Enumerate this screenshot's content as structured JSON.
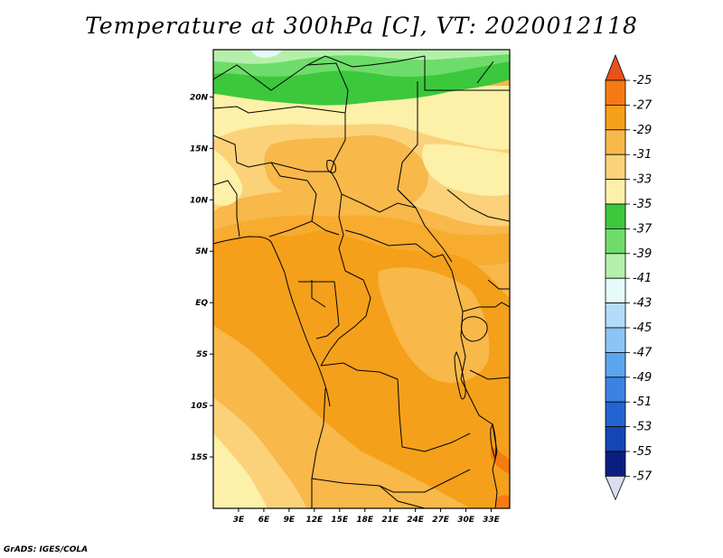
{
  "title": "Temperature at 300hPa [C], VT: 2020012118",
  "credit": "GrADS: IGES/COLA",
  "map": {
    "x_ticks": [
      {
        "lon": 3,
        "label": "3E"
      },
      {
        "lon": 6,
        "label": "6E"
      },
      {
        "lon": 9,
        "label": "9E"
      },
      {
        "lon": 12,
        "label": "12E"
      },
      {
        "lon": 15,
        "label": "15E"
      },
      {
        "lon": 18,
        "label": "18E"
      },
      {
        "lon": 21,
        "label": "21E"
      },
      {
        "lon": 24,
        "label": "24E"
      },
      {
        "lon": 27,
        "label": "27E"
      },
      {
        "lon": 30,
        "label": "30E"
      },
      {
        "lon": 33,
        "label": "33E"
      }
    ],
    "y_ticks": [
      {
        "lat": 20,
        "label": "20N"
      },
      {
        "lat": 15,
        "label": "15N"
      },
      {
        "lat": 10,
        "label": "10N"
      },
      {
        "lat": 5,
        "label": "5N"
      },
      {
        "lat": 0,
        "label": "EQ"
      },
      {
        "lat": -5,
        "label": "5S"
      },
      {
        "lat": -10,
        "label": "10S"
      },
      {
        "lat": -15,
        "label": "15S"
      }
    ]
  },
  "colorbar": {
    "levels": [
      {
        "label": "-25",
        "color": "#e8501e"
      },
      {
        "label": "-27",
        "color": "#f57a14"
      },
      {
        "label": "-29",
        "color": "#f5a01a"
      },
      {
        "label": "-31",
        "color": "#f8b84a"
      },
      {
        "label": "-33",
        "color": "#fbd27a"
      },
      {
        "label": "-35",
        "color": "#fdf0a8"
      },
      {
        "label": "-37",
        "color": "#3cc83c"
      },
      {
        "label": "-39",
        "color": "#6edc6a"
      },
      {
        "label": "-41",
        "color": "#b4f0aa"
      },
      {
        "label": "-43",
        "color": "#e6fafa"
      },
      {
        "label": "-45",
        "color": "#b4dcf8"
      },
      {
        "label": "-47",
        "color": "#8cc4f4"
      },
      {
        "label": "-49",
        "color": "#5aa6ee"
      },
      {
        "label": "-51",
        "color": "#3c82e4"
      },
      {
        "label": "-53",
        "color": "#2464d2"
      },
      {
        "label": "-55",
        "color": "#1446b4"
      },
      {
        "label": "-57",
        "color": "#0a1e82"
      }
    ],
    "top_cap_color": "#e8501e",
    "bottom_cap_color": "#dcdcf0"
  }
}
